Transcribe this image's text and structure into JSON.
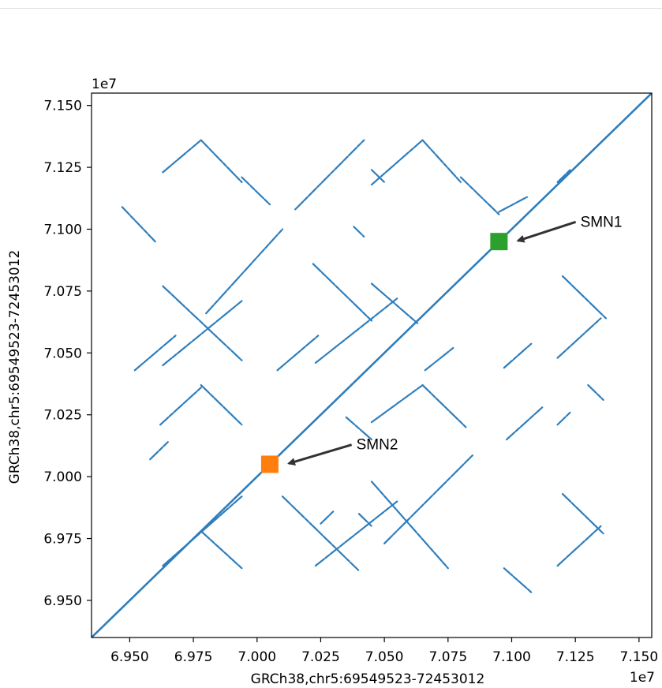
{
  "chart_data": {
    "type": "scatter",
    "title": "",
    "xlabel": "GRCh38,chr5:69549523-72453012",
    "ylabel": "GRCh38,chr5:69549523-72453012",
    "x_offset_label": "1e7",
    "y_offset_label": "1e7",
    "xlim": [
      6.935,
      7.155
    ],
    "ylim": [
      6.935,
      7.155
    ],
    "xticks": [
      "6.950",
      "6.975",
      "7.000",
      "7.025",
      "7.050",
      "7.075",
      "7.100",
      "7.125",
      "7.150"
    ],
    "yticks": [
      "6.950",
      "6.975",
      "7.000",
      "7.025",
      "7.050",
      "7.075",
      "7.100",
      "7.125",
      "7.150"
    ],
    "grid": false,
    "line_color": "#2e7ebc",
    "segments": [
      {
        "name": "main-diagonal",
        "x": [
          6.935,
          7.155
        ],
        "y": [
          6.935,
          7.155
        ]
      },
      {
        "name": "forward-upper",
        "x": [
          6.98,
          7.01
        ],
        "y": [
          7.066,
          7.1
        ]
      },
      {
        "name": "forward-lower",
        "x": [
          7.05,
          7.085
        ],
        "y": [
          6.973,
          7.009
        ]
      },
      {
        "name": "forward-a1",
        "x": [
          6.963,
          6.978
        ],
        "y": [
          7.123,
          7.136
        ]
      },
      {
        "name": "forward-a2",
        "x": [
          7.015,
          7.042
        ],
        "y": [
          7.108,
          7.136
        ]
      },
      {
        "name": "forward-a3",
        "x": [
          7.045,
          7.065
        ],
        "y": [
          7.118,
          7.136
        ]
      },
      {
        "name": "forward-a4",
        "x": [
          7.118,
          7.123
        ],
        "y": [
          7.119,
          7.124
        ]
      },
      {
        "name": "forward-b1",
        "x": [
          6.963,
          6.994
        ],
        "y": [
          7.045,
          7.071
        ]
      },
      {
        "name": "forward-b2",
        "x": [
          7.023,
          7.055
        ],
        "y": [
          7.046,
          7.072
        ]
      },
      {
        "name": "forward-b3",
        "x": [
          7.118,
          7.135
        ],
        "y": [
          7.048,
          7.064
        ]
      },
      {
        "name": "forward-c1",
        "x": [
          6.962,
          6.978
        ],
        "y": [
          7.021,
          7.036
        ]
      },
      {
        "name": "forward-c2",
        "x": [
          7.045,
          7.065
        ],
        "y": [
          7.022,
          7.037
        ]
      },
      {
        "name": "forward-c3",
        "x": [
          7.118,
          7.123
        ],
        "y": [
          7.021,
          7.026
        ]
      },
      {
        "name": "forward-d1",
        "x": [
          6.963,
          6.994
        ],
        "y": [
          6.964,
          6.992
        ]
      },
      {
        "name": "forward-d2",
        "x": [
          7.023,
          7.055
        ],
        "y": [
          6.964,
          6.99
        ]
      },
      {
        "name": "forward-d3",
        "x": [
          7.118,
          7.135
        ],
        "y": [
          6.964,
          6.98
        ]
      },
      {
        "name": "forward-e1",
        "x": [
          6.952,
          6.968
        ],
        "y": [
          7.043,
          7.057
        ]
      },
      {
        "name": "forward-e2",
        "x": [
          7.008,
          7.024
        ],
        "y": [
          7.043,
          7.057
        ]
      },
      {
        "name": "forward-e3",
        "x": [
          7.066,
          7.077
        ],
        "y": [
          7.043,
          7.052
        ]
      },
      {
        "name": "forward-e4",
        "x": [
          7.097,
          7.108
        ],
        "y": [
          7.044,
          7.054
        ]
      },
      {
        "name": "forward-f1",
        "x": [
          7.098,
          7.112
        ],
        "y": [
          7.015,
          7.028
        ]
      },
      {
        "name": "forward-f2",
        "x": [
          6.958,
          6.965
        ],
        "y": [
          7.007,
          7.014
        ]
      },
      {
        "name": "forward-g1",
        "x": [
          7.025,
          7.03
        ],
        "y": [
          6.981,
          6.986
        ]
      },
      {
        "name": "forward-h1",
        "x": [
          7.095,
          7.106
        ],
        "y": [
          7.107,
          7.113
        ]
      },
      {
        "name": "reverse-upper",
        "x": [
          6.963,
          6.994
        ],
        "y": [
          7.077,
          7.047
        ]
      },
      {
        "name": "reverse-lower",
        "x": [
          7.045,
          7.075
        ],
        "y": [
          6.998,
          6.963
        ]
      },
      {
        "name": "reverse-a1",
        "x": [
          6.978,
          6.994
        ],
        "y": [
          7.136,
          7.119
        ]
      },
      {
        "name": "reverse-a2",
        "x": [
          7.045,
          7.05
        ],
        "y": [
          7.124,
          7.119
        ]
      },
      {
        "name": "reverse-a3",
        "x": [
          7.065,
          7.08
        ],
        "y": [
          7.136,
          7.119
        ]
      },
      {
        "name": "reverse-a4",
        "x": [
          6.994,
          7.005
        ],
        "y": [
          7.121,
          7.11
        ]
      },
      {
        "name": "reverse-a5",
        "x": [
          7.08,
          7.095
        ],
        "y": [
          7.121,
          7.106
        ]
      },
      {
        "name": "reverse-b1",
        "x": [
          6.947,
          6.96
        ],
        "y": [
          7.109,
          7.095
        ]
      },
      {
        "name": "reverse-b2",
        "x": [
          7.038,
          7.042
        ],
        "y": [
          7.101,
          7.097
        ]
      },
      {
        "name": "reverse-b3",
        "x": [
          7.022,
          7.045
        ],
        "y": [
          7.086,
          7.063
        ]
      },
      {
        "name": "reverse-b4",
        "x": [
          7.12,
          7.137
        ],
        "y": [
          7.081,
          7.064
        ]
      },
      {
        "name": "reverse-b5",
        "x": [
          7.045,
          7.063
        ],
        "y": [
          7.078,
          7.062
        ]
      },
      {
        "name": "reverse-c1",
        "x": [
          6.978,
          6.994
        ],
        "y": [
          7.037,
          7.021
        ]
      },
      {
        "name": "reverse-c2",
        "x": [
          7.065,
          7.082
        ],
        "y": [
          7.037,
          7.02
        ]
      },
      {
        "name": "reverse-c3",
        "x": [
          7.035,
          7.045
        ],
        "y": [
          7.024,
          7.015
        ]
      },
      {
        "name": "reverse-c4",
        "x": [
          7.13,
          7.136
        ],
        "y": [
          7.037,
          7.031
        ]
      },
      {
        "name": "reverse-d1",
        "x": [
          7.01,
          7.04
        ],
        "y": [
          6.992,
          6.962
        ]
      },
      {
        "name": "reverse-d2",
        "x": [
          6.978,
          6.994
        ],
        "y": [
          6.978,
          6.963
        ]
      },
      {
        "name": "reverse-d3",
        "x": [
          7.12,
          7.136
        ],
        "y": [
          6.993,
          6.977
        ]
      },
      {
        "name": "reverse-d4",
        "x": [
          7.097,
          7.108
        ],
        "y": [
          6.963,
          6.953
        ]
      },
      {
        "name": "reverse-e1",
        "x": [
          7.04,
          7.045
        ],
        "y": [
          6.985,
          6.98
        ]
      }
    ],
    "highlight_points": [
      {
        "label": "SMN1",
        "x": 7.095,
        "y": 7.095,
        "color": "#2ca02c"
      },
      {
        "label": "SMN2",
        "x": 7.005,
        "y": 7.005,
        "color": "#ff7f0e"
      }
    ],
    "annotations": [
      {
        "text": "SMN1",
        "target": [
          7.095,
          7.095
        ],
        "text_x": 7.127,
        "text_y": 7.101
      },
      {
        "text": "SMN2",
        "target": [
          7.005,
          7.005
        ],
        "text_x": 7.039,
        "text_y": 7.011
      }
    ]
  }
}
